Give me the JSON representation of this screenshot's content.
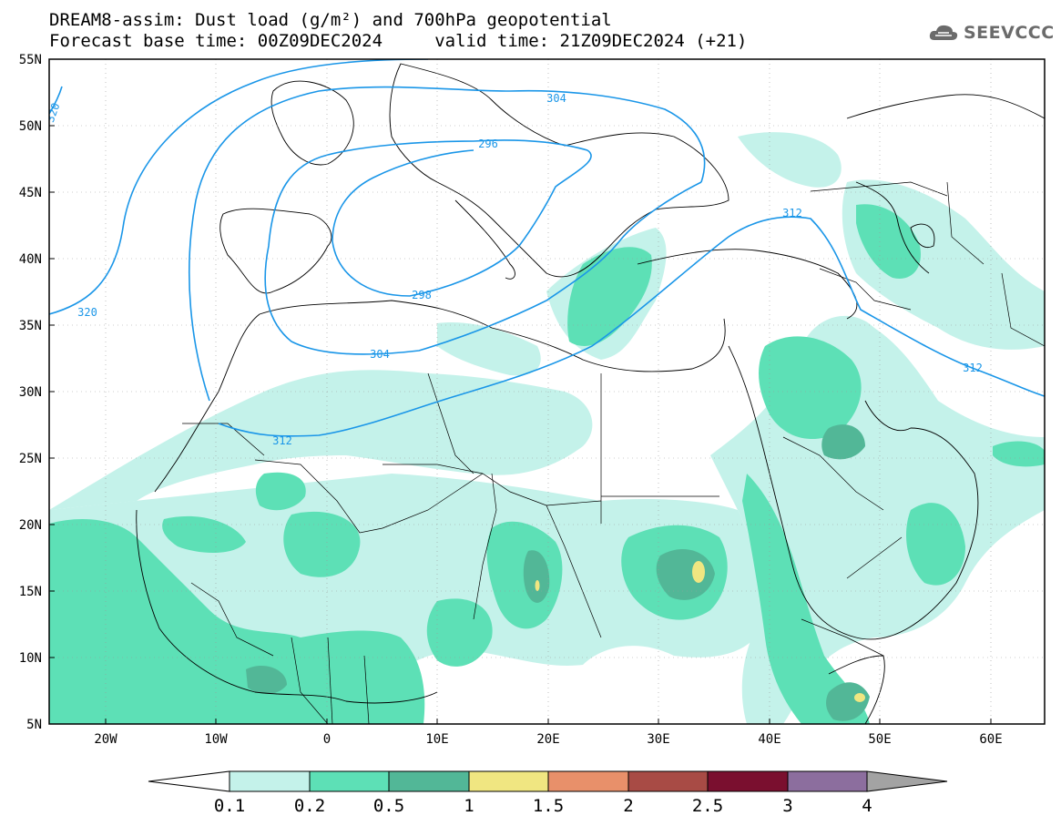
{
  "header": {
    "line1": "DREAM8-assim: Dust load (g/m²) and 700hPa geopotential",
    "line2": "Forecast base time: 00Z09DEC2024     valid time: 21Z09DEC2024 (+21)"
  },
  "logo": {
    "text": "SEEVCCC",
    "icon": "cloud-icon"
  },
  "map": {
    "lat_labels": [
      "55N",
      "50N",
      "45N",
      "40N",
      "35N",
      "30N",
      "25N",
      "20N",
      "15N",
      "10N",
      "5N"
    ],
    "lon_labels": [
      "20W",
      "10W",
      "0",
      "10E",
      "20E",
      "30E",
      "40E",
      "50E",
      "60E"
    ],
    "contour_labels": [
      "320",
      "304",
      "296",
      "312",
      "298",
      "304",
      "320",
      "312",
      "312"
    ]
  },
  "colorbar": {
    "tick_labels": [
      "0.1",
      "0.2",
      "0.5",
      "1",
      "1.5",
      "2",
      "2.5",
      "3",
      "4"
    ],
    "colors": [
      "#c4f2ea",
      "#5de0b6",
      "#52b797",
      "#f0e681",
      "#e8906a",
      "#a84b45",
      "#7a0f2f",
      "#8c6e9e",
      "#a3a3a3"
    ]
  },
  "colors": {
    "contour": "#1a96e8",
    "dust_light": "#c4f2ea",
    "dust_mid": "#5de0b6",
    "dust_dark": "#52b797",
    "dust_yellow": "#f0e681"
  }
}
